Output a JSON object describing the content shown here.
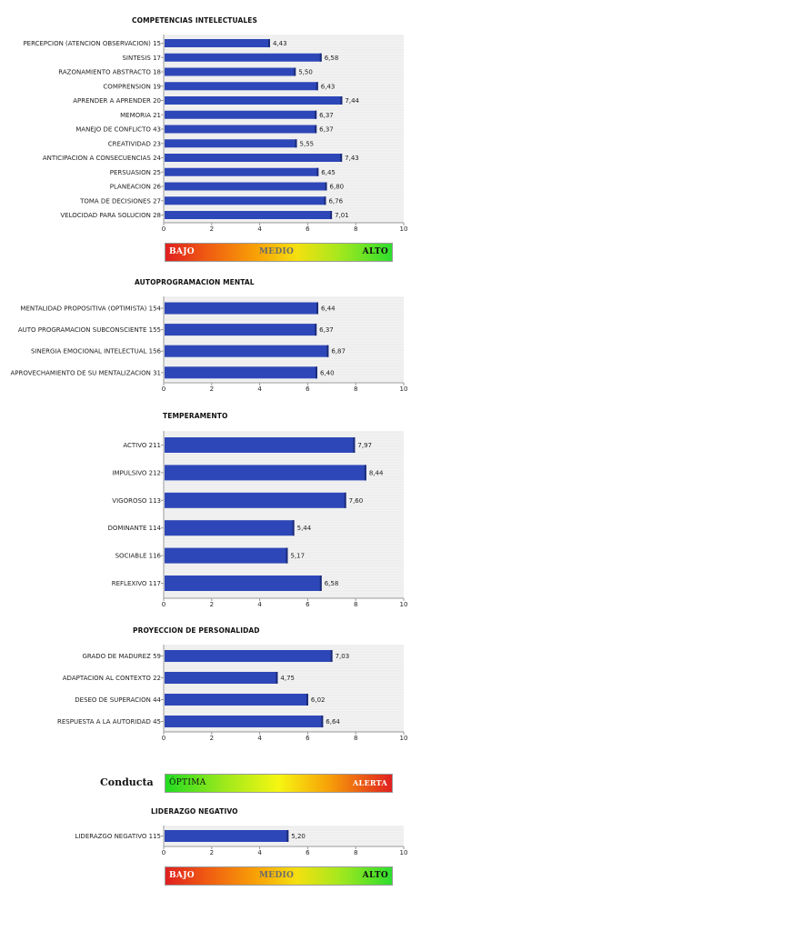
{
  "chart_data": [
    {
      "type": "bar",
      "title": "COMPETENCIAS INTELECTUALES",
      "categories": [
        "PERCEPCION (ATENCION OBSERVACION) 15",
        "SINTESIS 17",
        "RAZONAMIENTO ABSTRACTO 18",
        "COMPRENSION 19",
        "APRENDER A APRENDER 20",
        "MEMORIA 21",
        "MANEJO DE CONFLICTO 43",
        "CREATIVIDAD 23",
        "ANTICIPACION A CONSECUENCIAS 24",
        "PERSUASION 25",
        "PLANEACION 26",
        "TOMA DE DECISIONES 27",
        "VELOCIDAD PARA SOLUCION 28"
      ],
      "values": [
        4.43,
        6.58,
        5.5,
        6.43,
        7.44,
        6.37,
        6.37,
        5.55,
        7.43,
        6.45,
        6.8,
        6.76,
        7.01
      ],
      "value_labels": [
        "4,43",
        "6,58",
        "5,50",
        "6,43",
        "7,44",
        "6,37",
        "6,37",
        "5,55",
        "7,43",
        "6,45",
        "6,80",
        "6,76",
        "7,01"
      ],
      "xlim": [
        0,
        10
      ],
      "xticks": [
        "0",
        "2",
        "4",
        "6",
        "8",
        "10"
      ],
      "bar_color": "#2d47b8"
    },
    {
      "type": "bar",
      "title": "AUTOPROGRAMACION MENTAL",
      "categories": [
        "MENTALIDAD PROPOSITIVA (OPTIMISTA) 154",
        "AUTO PROGRAMACION SUBCONSCIENTE 155",
        "SINERGIA EMOCIONAL INTELECTUAL 156",
        "APROVECHAMIENTO DE SU MENTALIZACION 31"
      ],
      "values": [
        6.44,
        6.37,
        6.87,
        6.4
      ],
      "value_labels": [
        "6,44",
        "6,37",
        "6,87",
        "6,40"
      ],
      "xlim": [
        0,
        10
      ],
      "xticks": [
        "0",
        "2",
        "4",
        "6",
        "8",
        "10"
      ],
      "bar_color": "#2d47b8"
    },
    {
      "type": "bar",
      "title": "TEMPERAMENTO",
      "categories": [
        "ACTIVO 211",
        "IMPULSIVO 212",
        "VIGOROSO 113",
        "DOMINANTE 114",
        "SOCIABLE 116",
        "REFLEXIVO 117"
      ],
      "values": [
        7.97,
        8.44,
        7.6,
        5.44,
        5.17,
        6.58
      ],
      "value_labels": [
        "7,97",
        "8,44",
        "7,60",
        "5,44",
        "5,17",
        "6,58"
      ],
      "xlim": [
        0,
        10
      ],
      "xticks": [
        "0",
        "2",
        "4",
        "6",
        "8",
        "10"
      ],
      "bar_color": "#2d47b8"
    },
    {
      "type": "bar",
      "title": "PROYECCION DE PERSONALIDAD",
      "categories": [
        "GRADO DE MADUREZ 59",
        "ADAPTACION AL CONTEXTO 22",
        "DESEO DE SUPERACION 44",
        "RESPUESTA A LA AUTORIDAD 45"
      ],
      "values": [
        7.03,
        4.75,
        6.02,
        6.64
      ],
      "value_labels": [
        "7,03",
        "4,75",
        "6,02",
        "6,64"
      ],
      "xlim": [
        0,
        10
      ],
      "xticks": [
        "0",
        "2",
        "4",
        "6",
        "8",
        "10"
      ],
      "bar_color": "#2d47b8"
    },
    {
      "type": "bar",
      "title": "LIDERAZGO NEGATIVO",
      "categories": [
        "LIDERAZGO NEGATIVO 115"
      ],
      "values": [
        5.2
      ],
      "value_labels": [
        "5,20"
      ],
      "xlim": [
        0,
        10
      ],
      "xticks": [
        "0",
        "2",
        "4",
        "6",
        "8",
        "10"
      ],
      "bar_color": "#2d47b8"
    }
  ],
  "scales": {
    "level": {
      "low": "BAJO",
      "mid": "MEDIO",
      "high": "ALTO"
    },
    "conduct": {
      "label": "Conducta",
      "good": "ÓPTIMA",
      "bad": "ALERTA"
    }
  }
}
